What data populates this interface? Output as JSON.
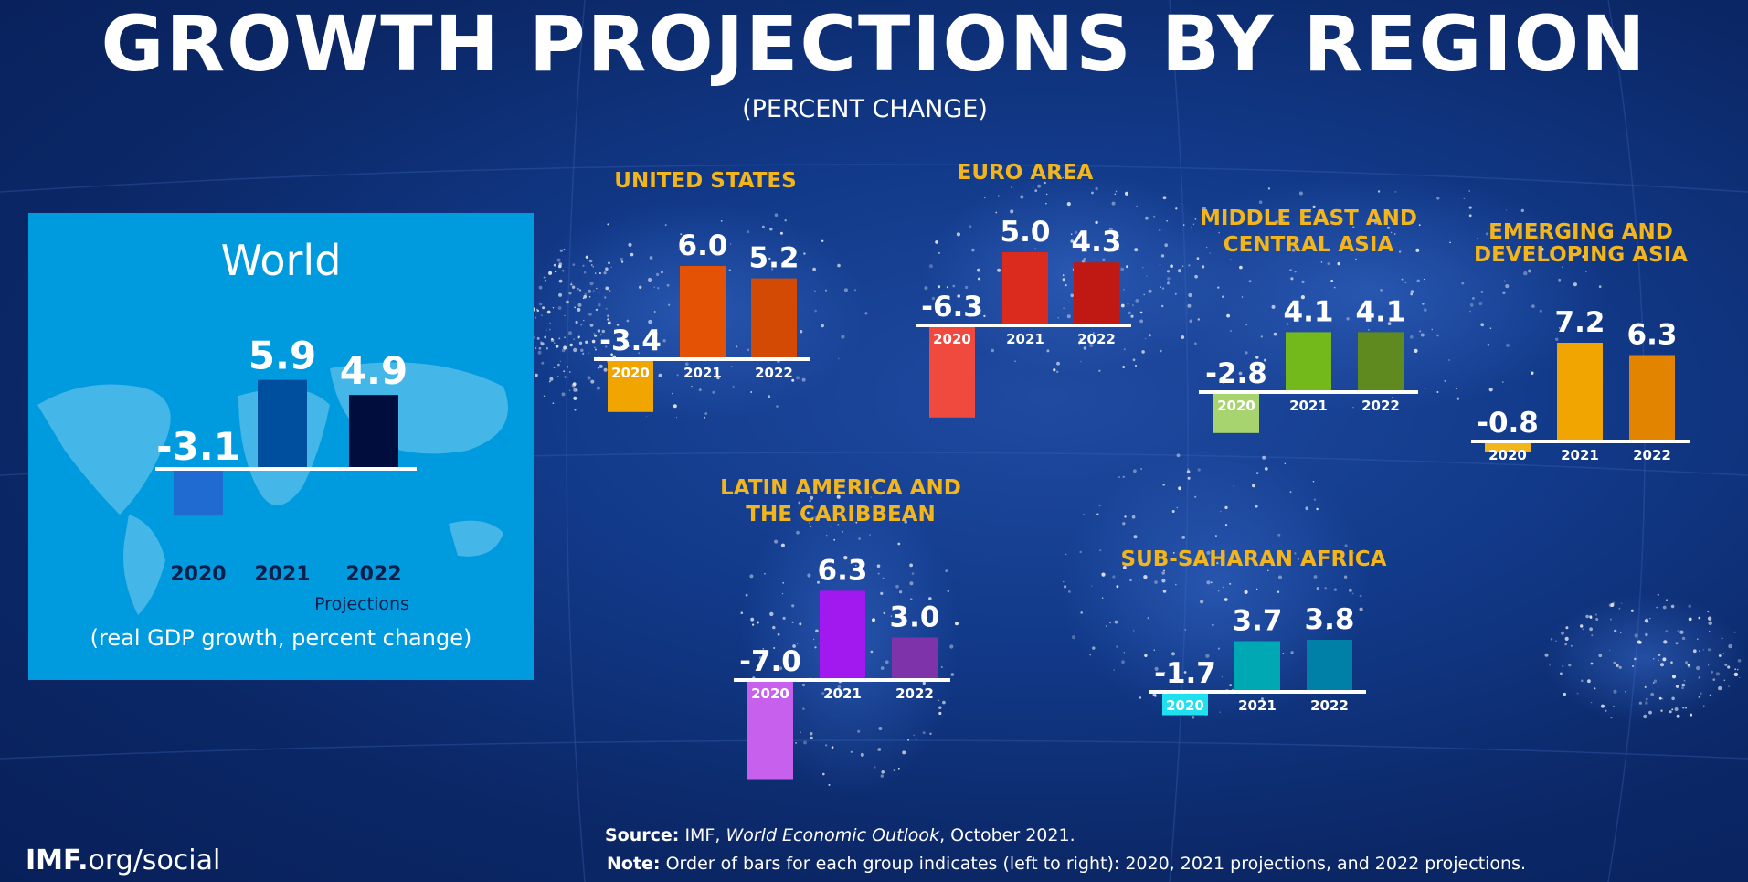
{
  "header": {
    "title": "GROWTH PROJECTIONS BY REGION",
    "subtitle": "(PERCENT CHANGE)"
  },
  "world_panel": {
    "projections_label": "Projections",
    "note": "(real GDP growth, percent change)"
  },
  "footer": {
    "source_label": "Source:",
    "source_text_1": "IMF,",
    "source_publication": "World Economic Outlook",
    "source_text_2": ", October 2021.",
    "note_label": "Note:",
    "note_text": "Order of bars for each group indicates (left to right): 2020, 2021 projections, and 2022 projections.",
    "logo_bold": "IMF.",
    "logo_rest": "org/social"
  },
  "colors": {
    "title_text": "#ffffff",
    "region_title": "#f2b51b",
    "world_panel_bg": "#009ade",
    "background": "#0b2766"
  },
  "chart_data": [
    {
      "type": "bar",
      "title": "World",
      "categories": [
        "2020",
        "2021",
        "2022"
      ],
      "values": [
        -3.1,
        5.9,
        4.9
      ],
      "labels": [
        "-3.1",
        "5.9",
        "4.9"
      ],
      "colors": [
        "#1f6bd1",
        "#004f9e",
        "#000d3d"
      ]
    },
    {
      "type": "bar",
      "title": "UNITED STATES",
      "categories": [
        "2020",
        "2021",
        "2022"
      ],
      "values": [
        -3.4,
        6.0,
        5.2
      ],
      "labels": [
        "-3.4",
        "6.0",
        "5.2"
      ],
      "colors": [
        "#f0a500",
        "#e35205",
        "#d34a05"
      ]
    },
    {
      "type": "bar",
      "title": "EURO AREA",
      "categories": [
        "2020",
        "2021",
        "2022"
      ],
      "values": [
        -6.3,
        5.0,
        4.3
      ],
      "labels": [
        "-6.3",
        "5.0",
        "4.3"
      ],
      "colors": [
        "#f04a3e",
        "#db2b1f",
        "#c01812"
      ]
    },
    {
      "type": "bar",
      "title": "MIDDLE EAST AND CENTRAL ASIA",
      "title_lines": [
        "MIDDLE EAST AND",
        "CENTRAL ASIA"
      ],
      "categories": [
        "2020",
        "2021",
        "2022"
      ],
      "values": [
        -2.8,
        4.1,
        4.1
      ],
      "labels": [
        "-2.8",
        "4.1",
        "4.1"
      ],
      "colors": [
        "#a8d46f",
        "#74b91c",
        "#5f8a1f"
      ]
    },
    {
      "type": "bar",
      "title": "EMERGING AND DEVELOPING ASIA",
      "title_lines": [
        "EMERGING AND",
        "DEVELOPING ASIA"
      ],
      "categories": [
        "2020",
        "2021",
        "2022"
      ],
      "values": [
        -0.8,
        7.2,
        6.3
      ],
      "labels": [
        "-0.8",
        "7.2",
        "6.3"
      ],
      "colors": [
        "#f2b51b",
        "#f0a500",
        "#e38400"
      ]
    },
    {
      "type": "bar",
      "title": "LATIN AMERICA AND THE CARIBBEAN",
      "title_lines": [
        "LATIN AMERICA AND",
        "THE CARIBBEAN"
      ],
      "categories": [
        "2020",
        "2021",
        "2022"
      ],
      "values": [
        -7.0,
        6.3,
        3.0
      ],
      "labels": [
        "-7.0",
        "6.3",
        "3.0"
      ],
      "colors": [
        "#c660ed",
        "#a219ef",
        "#7e33aa"
      ]
    },
    {
      "type": "bar",
      "title": "SUB-SAHARAN AFRICA",
      "categories": [
        "2020",
        "2021",
        "2022"
      ],
      "values": [
        -1.7,
        3.7,
        3.8
      ],
      "labels": [
        "-1.7",
        "3.7",
        "3.8"
      ],
      "colors": [
        "#1ee0ef",
        "#00a8b3",
        "#0080a6"
      ]
    }
  ]
}
